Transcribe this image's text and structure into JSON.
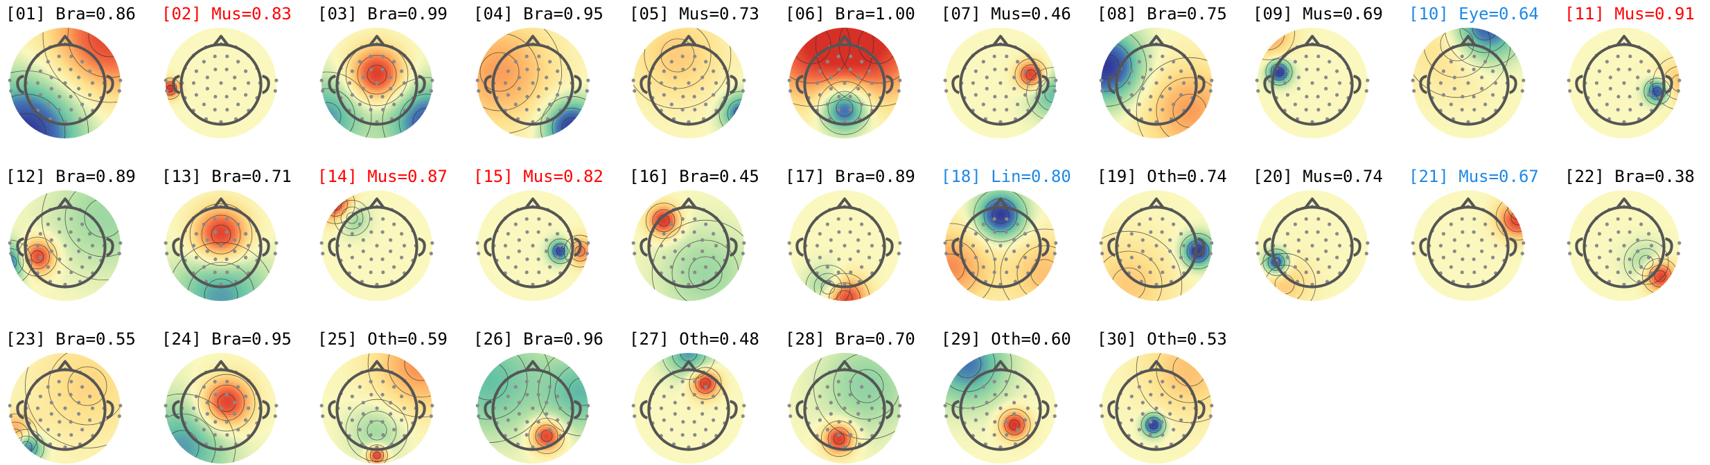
{
  "chart_data": {
    "type": "topomap-grid",
    "title": "",
    "layout": {
      "rows": 3,
      "columns": 11
    },
    "label_colors": {
      "normal": "#000000",
      "red": "#ff0000",
      "blue": "#1e88e5"
    },
    "components": [
      {
        "index": "01",
        "label": "Bra",
        "score": "0.86",
        "title": "[01] Bra=0.86",
        "label_color": "normal",
        "blobs": [
          {
            "u": 0.8,
            "v": -0.85,
            "s": 0.75,
            "amp": 0.9
          },
          {
            "u": -0.7,
            "v": 0.9,
            "s": 0.7,
            "amp": -1.0
          }
        ]
      },
      {
        "index": "02",
        "label": "Mus",
        "score": "0.83",
        "title": "[02] Mus=0.83",
        "label_color": "red",
        "blobs": [
          {
            "u": -0.92,
            "v": 0.1,
            "s": 0.12,
            "amp": 1.0
          }
        ]
      },
      {
        "index": "03",
        "label": "Bra",
        "score": "0.99",
        "title": "[03] Bra=0.99",
        "label_color": "normal",
        "blobs": [
          {
            "u": 0.0,
            "v": -0.15,
            "s": 0.35,
            "amp": 1.0
          },
          {
            "u": 0.9,
            "v": 0.7,
            "s": 0.5,
            "amp": -0.8
          },
          {
            "u": -0.9,
            "v": 0.6,
            "s": 0.5,
            "amp": -0.6
          }
        ]
      },
      {
        "index": "04",
        "label": "Bra",
        "score": "0.95",
        "title": "[04] Bra=0.95",
        "label_color": "normal",
        "blobs": [
          {
            "u": 0.7,
            "v": 0.8,
            "s": 0.35,
            "amp": -1.0
          },
          {
            "u": -0.6,
            "v": -0.2,
            "s": 0.7,
            "amp": 0.55
          }
        ]
      },
      {
        "index": "05",
        "label": "Mus",
        "score": "0.73",
        "title": "[05] Mus=0.73",
        "label_color": "normal",
        "blobs": [
          {
            "u": 0.95,
            "v": 0.55,
            "s": 0.25,
            "amp": -0.8
          },
          {
            "u": -0.2,
            "v": -0.5,
            "s": 0.6,
            "amp": 0.35
          }
        ]
      },
      {
        "index": "06",
        "label": "Bra",
        "score": "1.00",
        "title": "[06] Bra=1.00",
        "label_color": "normal",
        "blobs": [
          {
            "u": 0.0,
            "v": 0.45,
            "s": 0.3,
            "amp": -1.0
          },
          {
            "u": -0.6,
            "v": -0.7,
            "s": 0.7,
            "amp": 0.85
          },
          {
            "u": 0.6,
            "v": -0.7,
            "s": 0.7,
            "amp": 0.85
          }
        ]
      },
      {
        "index": "07",
        "label": "Mus",
        "score": "0.46",
        "title": "[07] Mus=0.46",
        "label_color": "normal",
        "blobs": [
          {
            "u": 0.55,
            "v": -0.15,
            "s": 0.18,
            "amp": 1.0
          },
          {
            "u": 0.95,
            "v": 0.2,
            "s": 0.3,
            "amp": -0.5
          }
        ]
      },
      {
        "index": "08",
        "label": "Bra",
        "score": "0.75",
        "title": "[08] Bra=0.75",
        "label_color": "normal",
        "blobs": [
          {
            "u": -0.9,
            "v": -0.3,
            "s": 0.45,
            "amp": -1.0
          },
          {
            "u": 0.6,
            "v": 0.5,
            "s": 0.6,
            "amp": 0.55
          }
        ]
      },
      {
        "index": "09",
        "label": "Mus",
        "score": "0.69",
        "title": "[09] Mus=0.69",
        "label_color": "normal",
        "blobs": [
          {
            "u": -0.6,
            "v": -0.2,
            "s": 0.15,
            "amp": -1.0
          },
          {
            "u": -0.8,
            "v": -0.9,
            "s": 0.3,
            "amp": 0.6
          }
        ]
      },
      {
        "index": "10",
        "label": "Eye",
        "score": "0.64",
        "title": "[10] Eye=0.64",
        "label_color": "blue",
        "blobs": [
          {
            "u": 0.3,
            "v": -1.0,
            "s": 0.45,
            "amp": -1.0
          },
          {
            "u": -0.2,
            "v": -0.7,
            "s": 0.6,
            "amp": 0.35
          }
        ]
      },
      {
        "index": "11",
        "label": "Mus",
        "score": "0.91",
        "title": "[11] Mus=0.91",
        "label_color": "red",
        "blobs": [
          {
            "u": 0.6,
            "v": 0.15,
            "s": 0.15,
            "amp": -1.0
          },
          {
            "u": 1.0,
            "v": 0.0,
            "s": 0.3,
            "amp": 0.4
          }
        ]
      },
      {
        "index": "12",
        "label": "Bra",
        "score": "0.89",
        "title": "[12] Bra=0.89",
        "label_color": "normal",
        "blobs": [
          {
            "u": -0.5,
            "v": 0.2,
            "s": 0.22,
            "amp": 1.0
          },
          {
            "u": -1.0,
            "v": 0.3,
            "s": 0.25,
            "amp": -0.8
          },
          {
            "u": 0.7,
            "v": -0.5,
            "s": 0.7,
            "amp": -0.3
          }
        ]
      },
      {
        "index": "13",
        "label": "Bra",
        "score": "0.71",
        "title": "[13] Bra=0.71",
        "label_color": "normal",
        "blobs": [
          {
            "u": 0.0,
            "v": -0.2,
            "s": 0.35,
            "amp": 1.0
          },
          {
            "u": 0.0,
            "v": 0.9,
            "s": 0.6,
            "amp": -0.6
          }
        ]
      },
      {
        "index": "14",
        "label": "Mus",
        "score": "0.87",
        "title": "[14] Mus=0.87",
        "label_color": "red",
        "blobs": [
          {
            "u": -0.75,
            "v": -0.75,
            "s": 0.22,
            "amp": 1.0
          },
          {
            "u": -0.45,
            "v": -0.5,
            "s": 0.2,
            "amp": -0.4
          }
        ]
      },
      {
        "index": "15",
        "label": "Mus",
        "score": "0.82",
        "title": "[15] Mus=0.82",
        "label_color": "red",
        "blobs": [
          {
            "u": 0.5,
            "v": 0.1,
            "s": 0.14,
            "amp": -1.0
          },
          {
            "u": 0.85,
            "v": 0.1,
            "s": 0.18,
            "amp": 0.7
          }
        ]
      },
      {
        "index": "16",
        "label": "Bra",
        "score": "0.45",
        "title": "[16] Bra=0.45",
        "label_color": "normal",
        "blobs": [
          {
            "u": -0.45,
            "v": -0.45,
            "s": 0.2,
            "amp": 1.0
          },
          {
            "u": 0.3,
            "v": 0.5,
            "s": 0.6,
            "amp": -0.3
          }
        ]
      },
      {
        "index": "17",
        "label": "Bra",
        "score": "0.89",
        "title": "[17] Bra=0.89",
        "label_color": "normal",
        "blobs": [
          {
            "u": 0.0,
            "v": 0.95,
            "s": 0.28,
            "amp": 1.0
          },
          {
            "u": -0.3,
            "v": 0.75,
            "s": 0.25,
            "amp": -0.5
          }
        ]
      },
      {
        "index": "18",
        "label": "Lin",
        "score": "0.80",
        "title": "[18] Lin=0.80",
        "label_color": "blue",
        "blobs": [
          {
            "u": 0.0,
            "v": -0.55,
            "s": 0.3,
            "amp": -1.0
          },
          {
            "u": -0.9,
            "v": 0.4,
            "s": 0.5,
            "amp": 0.6
          },
          {
            "u": 0.8,
            "v": 0.5,
            "s": 0.5,
            "amp": 0.4
          }
        ]
      },
      {
        "index": "19",
        "label": "Oth",
        "score": "0.74",
        "title": "[19] Oth=0.74",
        "label_color": "normal",
        "blobs": [
          {
            "u": 0.75,
            "v": 0.1,
            "s": 0.2,
            "amp": -1.0
          },
          {
            "u": -0.5,
            "v": 0.7,
            "s": 0.6,
            "amp": 0.35
          }
        ]
      },
      {
        "index": "20",
        "label": "Mus",
        "score": "0.74",
        "title": "[20] Mus=0.74",
        "label_color": "normal",
        "blobs": [
          {
            "u": -0.65,
            "v": 0.3,
            "s": 0.15,
            "amp": -1.0
          },
          {
            "u": -0.5,
            "v": 0.7,
            "s": 0.35,
            "amp": 0.35
          }
        ]
      },
      {
        "index": "21",
        "label": "Mus",
        "score": "0.67",
        "title": "[21] Mus=0.67",
        "label_color": "blue",
        "blobs": [
          {
            "u": 0.9,
            "v": -0.5,
            "s": 0.25,
            "amp": 1.0
          },
          {
            "u": 0.95,
            "v": -0.7,
            "s": 0.15,
            "amp": -0.6
          }
        ]
      },
      {
        "index": "22",
        "label": "Bra",
        "score": "0.38",
        "title": "[22] Bra=0.38",
        "label_color": "normal",
        "blobs": [
          {
            "u": 0.65,
            "v": 0.55,
            "s": 0.2,
            "amp": 1.0
          },
          {
            "u": 0.4,
            "v": 0.3,
            "s": 0.25,
            "amp": -0.3
          }
        ]
      },
      {
        "index": "23",
        "label": "Bra",
        "score": "0.55",
        "title": "[23] Bra=0.55",
        "label_color": "normal",
        "blobs": [
          {
            "u": -0.7,
            "v": 0.7,
            "s": 0.2,
            "amp": -1.0
          },
          {
            "u": -0.9,
            "v": 0.5,
            "s": 0.25,
            "amp": 0.7
          },
          {
            "u": 0.4,
            "v": -0.4,
            "s": 0.7,
            "amp": 0.3
          }
        ]
      },
      {
        "index": "24",
        "label": "Bra",
        "score": "0.95",
        "title": "[24] Bra=0.95",
        "label_color": "normal",
        "blobs": [
          {
            "u": 0.1,
            "v": -0.1,
            "s": 0.32,
            "amp": 1.0
          },
          {
            "u": -0.7,
            "v": 0.7,
            "s": 0.6,
            "amp": -0.6
          }
        ]
      },
      {
        "index": "25",
        "label": "Oth",
        "score": "0.59",
        "title": "[25] Oth=0.59",
        "label_color": "normal",
        "blobs": [
          {
            "u": 0.0,
            "v": 0.85,
            "s": 0.12,
            "amp": 1.0
          },
          {
            "u": 0.8,
            "v": -0.8,
            "s": 0.6,
            "amp": 0.6
          },
          {
            "u": 0.0,
            "v": 0.4,
            "s": 0.35,
            "amp": -0.3
          }
        ]
      },
      {
        "index": "26",
        "label": "Bra",
        "score": "0.96",
        "title": "[26] Bra=0.96",
        "label_color": "normal",
        "blobs": [
          {
            "u": 0.25,
            "v": 0.5,
            "s": 0.2,
            "amp": 1.0
          },
          {
            "u": -0.8,
            "v": -0.5,
            "s": 0.7,
            "amp": -0.5
          },
          {
            "u": 0.9,
            "v": -0.3,
            "s": 0.5,
            "amp": -0.5
          }
        ]
      },
      {
        "index": "27",
        "label": "Oth",
        "score": "0.48",
        "title": "[27] Oth=0.48",
        "label_color": "normal",
        "blobs": [
          {
            "u": 0.3,
            "v": -0.45,
            "s": 0.18,
            "amp": 1.0
          },
          {
            "u": 0.0,
            "v": -1.0,
            "s": 0.3,
            "amp": -0.6
          }
        ]
      },
      {
        "index": "28",
        "label": "Bra",
        "score": "0.70",
        "title": "[28] Bra=0.70",
        "label_color": "normal",
        "blobs": [
          {
            "u": -0.1,
            "v": 0.55,
            "s": 0.2,
            "amp": 1.0
          },
          {
            "u": 0.4,
            "v": -0.4,
            "s": 0.6,
            "amp": -0.35
          }
        ]
      },
      {
        "index": "29",
        "label": "Oth",
        "score": "0.60",
        "title": "[29] Oth=0.60",
        "label_color": "normal",
        "blobs": [
          {
            "u": 0.25,
            "v": 0.3,
            "s": 0.18,
            "amp": 1.0
          },
          {
            "u": -0.6,
            "v": -0.8,
            "s": 0.5,
            "amp": -0.7
          }
        ]
      },
      {
        "index": "30",
        "label": "Oth",
        "score": "0.53",
        "title": "[30] Oth=0.53",
        "label_color": "normal",
        "blobs": [
          {
            "u": -0.05,
            "v": 0.3,
            "s": 0.14,
            "amp": -1.0
          },
          {
            "u": 0.6,
            "v": -0.7,
            "s": 0.6,
            "amp": 0.4
          }
        ]
      }
    ]
  }
}
